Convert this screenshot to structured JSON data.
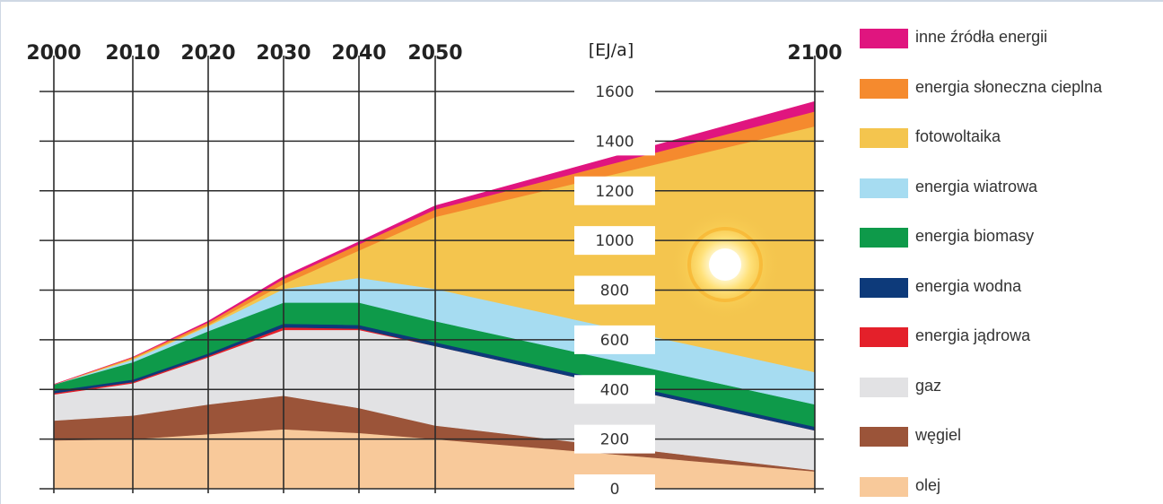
{
  "chart_data": {
    "type": "area",
    "stacked": true,
    "x": [
      2000,
      2010,
      2020,
      2030,
      2040,
      2050,
      2100
    ],
    "x_tick_labels": [
      "2000",
      "2010",
      "2020",
      "2030",
      "2040",
      "2050",
      "2100"
    ],
    "y_tick_labels": [
      "1600",
      "1400",
      "1200",
      "1000",
      "800",
      "600",
      "400",
      "200",
      "0"
    ],
    "unit_label": "[EJ/a]",
    "ylim": [
      0,
      1600
    ],
    "grid": true,
    "legend_position": "right",
    "series": [
      {
        "name": "olej",
        "color": "#f8c99a",
        "values": [
          195,
          200,
          220,
          240,
          225,
          200,
          70
        ]
      },
      {
        "name": "węgiel",
        "color": "#9b5439",
        "values": [
          80,
          95,
          120,
          135,
          100,
          55,
          5
        ]
      },
      {
        "name": "gaz",
        "color": "#e2e2e4",
        "values": [
          105,
          130,
          190,
          265,
          315,
          320,
          160
        ]
      },
      {
        "name": "energia jądrowa",
        "color": "#e4202a",
        "values": [
          5,
          5,
          5,
          10,
          5,
          0,
          0
        ]
      },
      {
        "name": "energia wodna",
        "color": "#0d3a7a",
        "values": [
          10,
          10,
          10,
          15,
          15,
          15,
          15
        ]
      },
      {
        "name": "energia biomasy",
        "color": "#0e9a4a",
        "values": [
          25,
          70,
          90,
          85,
          90,
          85,
          90
        ]
      },
      {
        "name": "energia wiatrowa",
        "color": "#a6dcf1",
        "values": [
          0,
          10,
          20,
          55,
          100,
          130,
          130
        ]
      },
      {
        "name": "fotowoltaika",
        "color": "#f4c54e",
        "values": [
          0,
          5,
          5,
          20,
          110,
          290,
          990
        ]
      },
      {
        "name": "energia słoneczna cieplna",
        "color": "#f58a2e",
        "values": [
          0,
          5,
          10,
          20,
          25,
          30,
          60
        ]
      },
      {
        "name": "inne źródła energii",
        "color": "#e0157f",
        "values": [
          0,
          0,
          5,
          10,
          10,
          15,
          40
        ]
      }
    ]
  },
  "legend": [
    {
      "label": "inne źródła energii",
      "color": "#e0157f"
    },
    {
      "label": "energia słoneczna cieplna",
      "color": "#f58a2e"
    },
    {
      "label": "fotowoltaika",
      "color": "#f4c54e"
    },
    {
      "label": "energia wiatrowa",
      "color": "#a6dcf1"
    },
    {
      "label": "energia biomasy",
      "color": "#0e9a4a"
    },
    {
      "label": "energia wodna",
      "color": "#0d3a7a"
    },
    {
      "label": "energia jądrowa",
      "color": "#e4202a"
    },
    {
      "label": "gaz",
      "color": "#e2e2e4"
    },
    {
      "label": "węgiel",
      "color": "#9b5439"
    },
    {
      "label": "olej",
      "color": "#f8c99a"
    }
  ],
  "decoration": {
    "sun_icon": "sun-icon"
  }
}
